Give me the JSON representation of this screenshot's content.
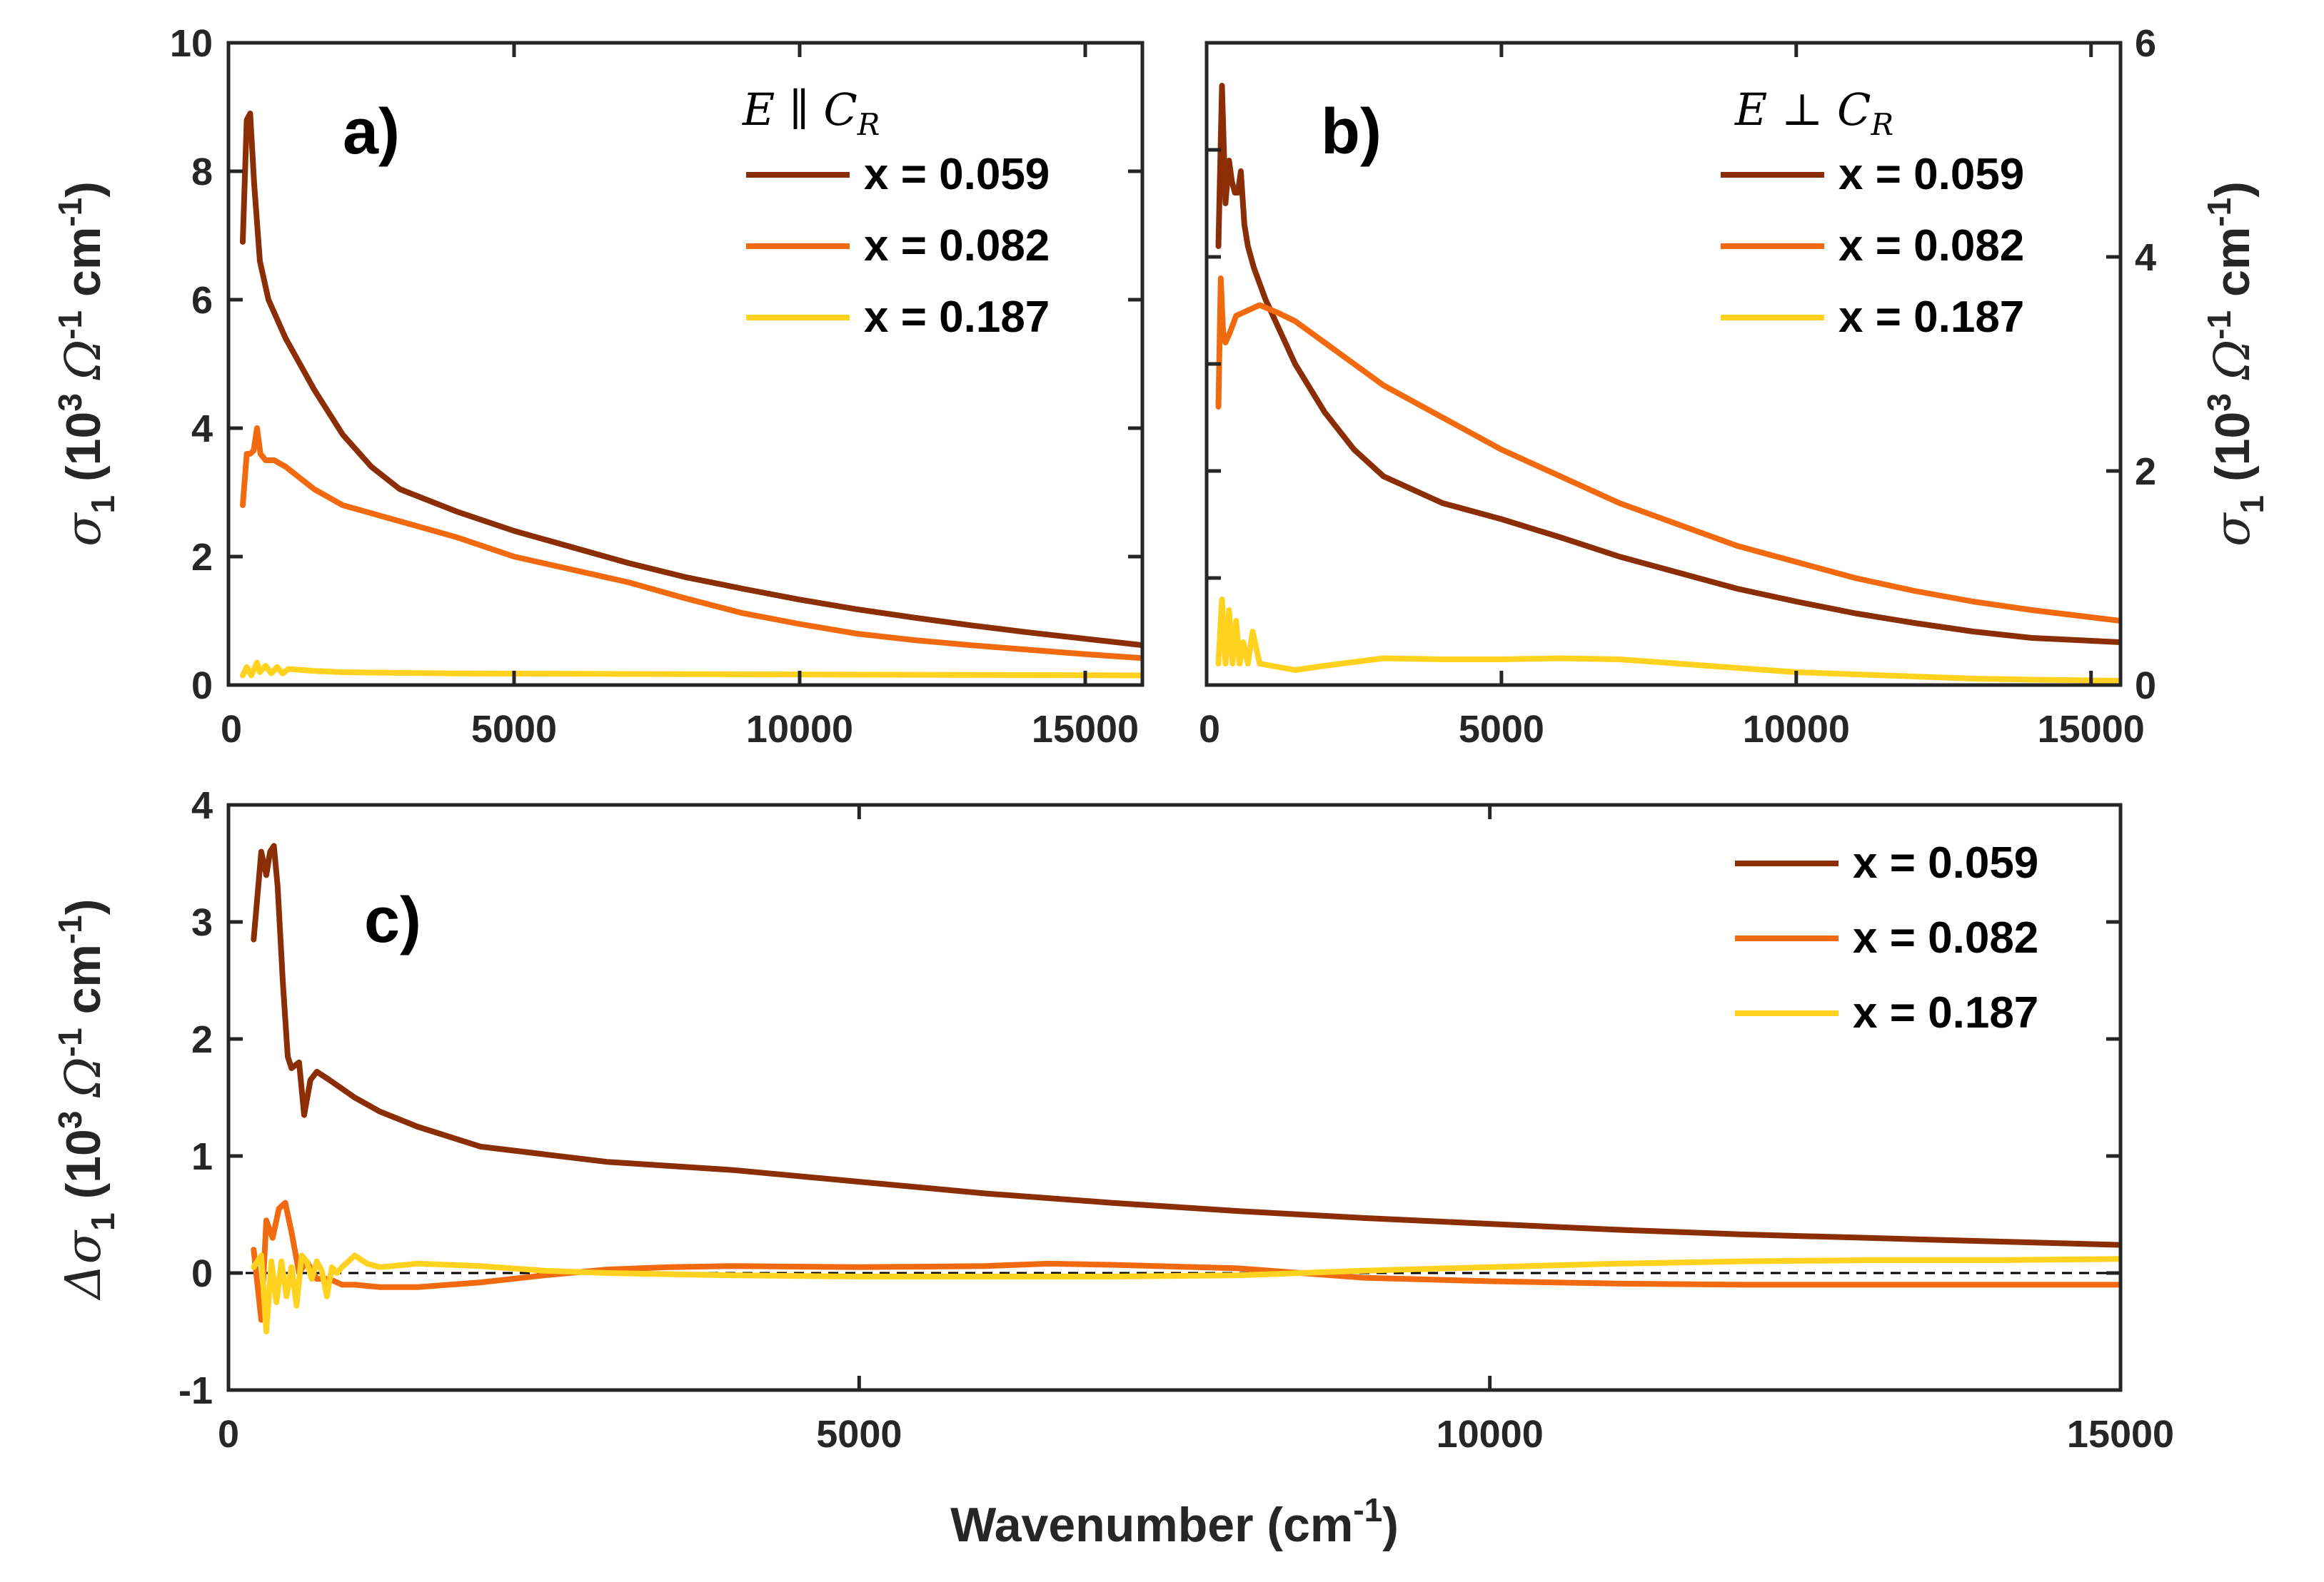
{
  "figure": {
    "xlabel_main": "Wavenumber (cm",
    "xlabel_sup": "-1",
    "xlabel_tail": ")"
  },
  "chart_data": [
    {
      "id": "a",
      "type": "line",
      "panel_label": "a)",
      "annotation": "E ∥ C_R",
      "ylabel": "σ1 (10^3 Ω^-1 cm^-1)",
      "xlim": [
        0,
        16000
      ],
      "ylim": [
        0,
        10
      ],
      "xticks": [
        "5000",
        "10000",
        "15000"
      ],
      "yticks": [
        "0",
        "2",
        "4",
        "6",
        "8",
        "10"
      ],
      "series": [
        {
          "name": "x = 0.059",
          "color": "#8B2E06",
          "x": [
            250,
            320,
            380,
            450,
            550,
            700,
            1000,
            1500,
            2000,
            2500,
            3000,
            4000,
            5000,
            6000,
            7000,
            8000,
            9000,
            10000,
            11000,
            12000,
            13000,
            14000,
            15000,
            16000
          ],
          "y": [
            6.9,
            8.8,
            8.9,
            7.8,
            6.6,
            6.0,
            5.4,
            4.6,
            3.9,
            3.4,
            3.05,
            2.7,
            2.4,
            2.15,
            1.9,
            1.68,
            1.5,
            1.33,
            1.18,
            1.05,
            0.93,
            0.82,
            0.72,
            0.62
          ]
        },
        {
          "name": "x = 0.082",
          "color": "#F26A0F",
          "x": [
            250,
            320,
            380,
            440,
            500,
            560,
            650,
            800,
            1000,
            1500,
            2000,
            3000,
            4000,
            5000,
            6000,
            7000,
            8000,
            9000,
            10000,
            11000,
            12000,
            13000,
            14000,
            15000,
            16000
          ],
          "y": [
            2.8,
            3.6,
            3.6,
            3.65,
            4.0,
            3.6,
            3.5,
            3.5,
            3.4,
            3.05,
            2.8,
            2.55,
            2.3,
            2.0,
            1.8,
            1.6,
            1.35,
            1.12,
            0.95,
            0.8,
            0.7,
            0.62,
            0.55,
            0.48,
            0.42
          ]
        },
        {
          "name": "x = 0.187",
          "color": "#FFD21F",
          "x": [
            250,
            320,
            400,
            500,
            550,
            650,
            750,
            850,
            950,
            1050,
            1500,
            2000,
            4000,
            8000,
            12000,
            16000
          ],
          "y": [
            0.15,
            0.28,
            0.15,
            0.35,
            0.2,
            0.3,
            0.18,
            0.28,
            0.18,
            0.25,
            0.22,
            0.2,
            0.18,
            0.17,
            0.16,
            0.15
          ]
        }
      ]
    },
    {
      "id": "b",
      "type": "line",
      "panel_label": "b)",
      "annotation": "E ⊥ C_R",
      "ylabel": "σ1 (10^3 Ω^-1 cm^-1)",
      "xlim": [
        0,
        15500
      ],
      "ylim": [
        0,
        6
      ],
      "xticks": [
        "5000",
        "10000",
        "15000"
      ],
      "yticks": [
        "0",
        "2",
        "4",
        "6"
      ],
      "series": [
        {
          "name": "x = 0.059",
          "color": "#8B2E06",
          "x": [
            200,
            260,
            320,
            380,
            430,
            480,
            530,
            580,
            640,
            700,
            800,
            1000,
            1500,
            2000,
            2500,
            3000,
            4000,
            5000,
            6000,
            7000,
            8000,
            9000,
            10000,
            11000,
            12000,
            13000,
            14000,
            15500
          ],
          "y": [
            4.1,
            5.6,
            4.5,
            4.9,
            4.7,
            4.6,
            4.6,
            4.8,
            4.3,
            4.1,
            3.9,
            3.6,
            3.0,
            2.55,
            2.2,
            1.95,
            1.7,
            1.55,
            1.38,
            1.2,
            1.05,
            0.9,
            0.78,
            0.67,
            0.58,
            0.5,
            0.44,
            0.4
          ]
        },
        {
          "name": "x = 0.082",
          "color": "#F26A0F",
          "x": [
            200,
            240,
            280,
            320,
            400,
            500,
            700,
            900,
            1200,
            1500,
            2000,
            3000,
            4000,
            5000,
            6000,
            7000,
            8000,
            9000,
            10000,
            11000,
            12000,
            13000,
            14000,
            15500
          ],
          "y": [
            2.6,
            3.8,
            3.3,
            3.2,
            3.3,
            3.45,
            3.5,
            3.55,
            3.48,
            3.4,
            3.2,
            2.8,
            2.5,
            2.2,
            1.95,
            1.7,
            1.5,
            1.3,
            1.15,
            1.0,
            0.88,
            0.78,
            0.7,
            0.6
          ]
        },
        {
          "name": "x = 0.187",
          "color": "#FFD21F",
          "x": [
            200,
            260,
            320,
            380,
            440,
            500,
            560,
            620,
            700,
            780,
            900,
            1100,
            1500,
            2000,
            3000,
            4000,
            5000,
            6000,
            7000,
            8000,
            9000,
            10000,
            11000,
            12000,
            13000,
            14000,
            15500
          ],
          "y": [
            0.2,
            0.8,
            0.2,
            0.7,
            0.2,
            0.6,
            0.2,
            0.4,
            0.2,
            0.5,
            0.2,
            0.18,
            0.14,
            0.18,
            0.25,
            0.24,
            0.24,
            0.25,
            0.24,
            0.2,
            0.16,
            0.12,
            0.1,
            0.08,
            0.06,
            0.05,
            0.04
          ]
        }
      ]
    },
    {
      "id": "c",
      "type": "line",
      "panel_label": "c)",
      "ylabel": "Δσ1 (10^3 Ω^-1 cm^-1)",
      "xlabel": "Wavenumber (cm^-1)",
      "xlim": [
        0,
        15000
      ],
      "ylim": [
        -1,
        4
      ],
      "xticks": [
        "0",
        "5000",
        "10000",
        "15000"
      ],
      "yticks": [
        "-1",
        "0",
        "1",
        "2",
        "3",
        "4"
      ],
      "reference_line": {
        "y": 0,
        "style": "dashed"
      },
      "series": [
        {
          "name": "x = 0.059",
          "color": "#8B2E06",
          "x": [
            200,
            260,
            300,
            330,
            360,
            390,
            430,
            470,
            500,
            560,
            600,
            650,
            700,
            800,
            1000,
            1200,
            1500,
            2000,
            3000,
            4000,
            5000,
            6000,
            7000,
            8000,
            9000,
            10000,
            11000,
            12000,
            13000,
            14000,
            15000
          ],
          "y": [
            2.85,
            3.6,
            3.4,
            3.6,
            3.65,
            3.3,
            2.5,
            1.85,
            1.75,
            1.8,
            1.35,
            1.65,
            1.72,
            1.65,
            1.5,
            1.38,
            1.25,
            1.08,
            0.95,
            0.88,
            0.78,
            0.68,
            0.6,
            0.53,
            0.47,
            0.42,
            0.37,
            0.33,
            0.3,
            0.27,
            0.24
          ]
        },
        {
          "name": "x = 0.082",
          "color": "#F26A0F",
          "x": [
            200,
            260,
            300,
            350,
            400,
            450,
            500,
            560,
            620,
            700,
            800,
            900,
            1000,
            1200,
            1500,
            2000,
            2500,
            3000,
            3500,
            4000,
            5000,
            6000,
            6500,
            7000,
            8000,
            8500,
            9000,
            10000,
            11000,
            12000,
            13000,
            14000,
            15000
          ],
          "y": [
            0.2,
            -0.4,
            0.45,
            0.3,
            0.55,
            0.6,
            0.35,
            0.0,
            0.1,
            -0.05,
            -0.05,
            -0.1,
            -0.1,
            -0.12,
            -0.12,
            -0.08,
            -0.02,
            0.03,
            0.05,
            0.06,
            0.05,
            0.06,
            0.08,
            0.07,
            0.04,
            0.0,
            -0.04,
            -0.07,
            -0.09,
            -0.1,
            -0.1,
            -0.1,
            -0.1
          ]
        },
        {
          "name": "x = 0.187",
          "color": "#FFD21F",
          "x": [
            200,
            260,
            300,
            340,
            380,
            420,
            460,
            500,
            540,
            580,
            620,
            660,
            700,
            740,
            780,
            820,
            860,
            900,
            1000,
            1100,
            1200,
            1500,
            2000,
            2500,
            3000,
            4000,
            5000,
            6000,
            7000,
            8000,
            9000,
            10000,
            11000,
            12000,
            13000,
            14000,
            15000
          ],
          "y": [
            0.05,
            0.15,
            -0.5,
            0.1,
            -0.25,
            0.1,
            -0.2,
            0.05,
            -0.28,
            0.15,
            0.1,
            -0.05,
            0.1,
            0.02,
            -0.2,
            0.05,
            0.0,
            0.05,
            0.15,
            0.08,
            0.05,
            0.08,
            0.06,
            0.02,
            0.0,
            -0.02,
            -0.03,
            -0.03,
            -0.03,
            -0.02,
            0.02,
            0.05,
            0.08,
            0.1,
            0.11,
            0.11,
            0.12
          ]
        }
      ]
    }
  ]
}
